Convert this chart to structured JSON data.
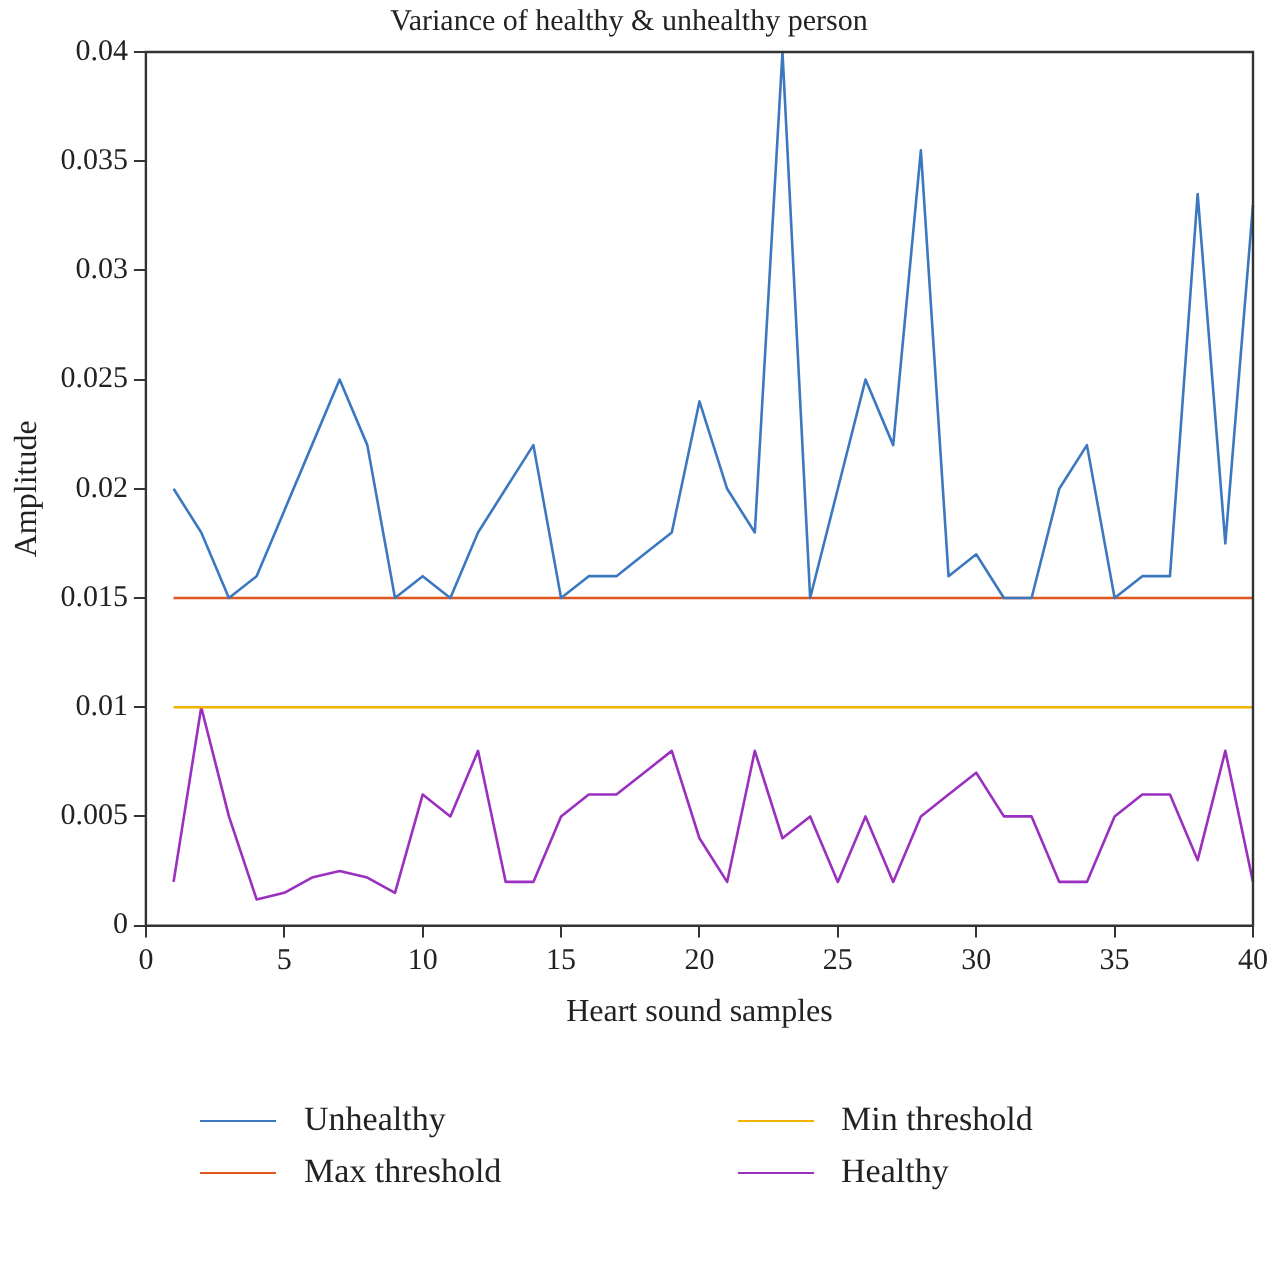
{
  "chart_data": {
    "type": "line",
    "title": "Variance of healthy & unhealthy person",
    "xlabel": "Heart sound samples",
    "ylabel": "Amplitude",
    "x": [
      1,
      2,
      3,
      4,
      5,
      6,
      7,
      8,
      9,
      10,
      11,
      12,
      13,
      14,
      15,
      16,
      17,
      18,
      19,
      20,
      21,
      22,
      23,
      24,
      25,
      26,
      27,
      28,
      29,
      30,
      31,
      32,
      33,
      34,
      35,
      36,
      37,
      38,
      39,
      40
    ],
    "series": [
      {
        "name": "Unhealthy",
        "color": "#3c78c0",
        "values": [
          0.02,
          0.018,
          0.015,
          0.016,
          0.019,
          0.022,
          0.025,
          0.022,
          0.015,
          0.016,
          0.015,
          0.018,
          0.02,
          0.022,
          0.015,
          0.016,
          0.016,
          0.017,
          0.018,
          0.024,
          0.02,
          0.018,
          0.04,
          0.015,
          0.02,
          0.025,
          0.022,
          0.0355,
          0.016,
          0.017,
          0.015,
          0.015,
          0.02,
          0.022,
          0.015,
          0.016,
          0.016,
          0.0335,
          0.0175,
          0.033
        ]
      },
      {
        "name": "Max threshold",
        "color": "#e0561b",
        "values": [
          0.015,
          0.015,
          0.015,
          0.015,
          0.015,
          0.015,
          0.015,
          0.015,
          0.015,
          0.015,
          0.015,
          0.015,
          0.015,
          0.015,
          0.015,
          0.015,
          0.015,
          0.015,
          0.015,
          0.015,
          0.015,
          0.015,
          0.015,
          0.015,
          0.015,
          0.015,
          0.015,
          0.015,
          0.015,
          0.015,
          0.015,
          0.015,
          0.015,
          0.015,
          0.015,
          0.015,
          0.015,
          0.015,
          0.015,
          0.015
        ]
      },
      {
        "name": "Min threshold",
        "color": "#f0b400",
        "values": [
          0.01,
          0.01,
          0.01,
          0.01,
          0.01,
          0.01,
          0.01,
          0.01,
          0.01,
          0.01,
          0.01,
          0.01,
          0.01,
          0.01,
          0.01,
          0.01,
          0.01,
          0.01,
          0.01,
          0.01,
          0.01,
          0.01,
          0.01,
          0.01,
          0.01,
          0.01,
          0.01,
          0.01,
          0.01,
          0.01,
          0.01,
          0.01,
          0.01,
          0.01,
          0.01,
          0.01,
          0.01,
          0.01,
          0.01,
          0.01
        ]
      },
      {
        "name": "Healthy",
        "color": "#9b2fc0",
        "values": [
          0.002,
          0.01,
          0.005,
          0.0012,
          0.0015,
          0.0022,
          0.0025,
          0.0022,
          0.0015,
          0.006,
          0.005,
          0.008,
          0.002,
          0.002,
          0.005,
          0.006,
          0.006,
          0.007,
          0.008,
          0.004,
          0.002,
          0.008,
          0.004,
          0.005,
          0.002,
          0.005,
          0.002,
          0.005,
          0.006,
          0.007,
          0.005,
          0.005,
          0.002,
          0.002,
          0.005,
          0.006,
          0.006,
          0.003,
          0.008,
          0.002
        ]
      }
    ],
    "xlim": [
      0,
      40
    ],
    "xticks": [
      0,
      5,
      10,
      15,
      20,
      25,
      30,
      35,
      40
    ],
    "ylim": [
      0,
      0.04
    ],
    "yticks": [
      0,
      0.005,
      0.01,
      0.015,
      0.02,
      0.025,
      0.03,
      0.035,
      0.04
    ],
    "grid": false,
    "legend": "bottom",
    "marker": "none",
    "line_style": "solid"
  }
}
